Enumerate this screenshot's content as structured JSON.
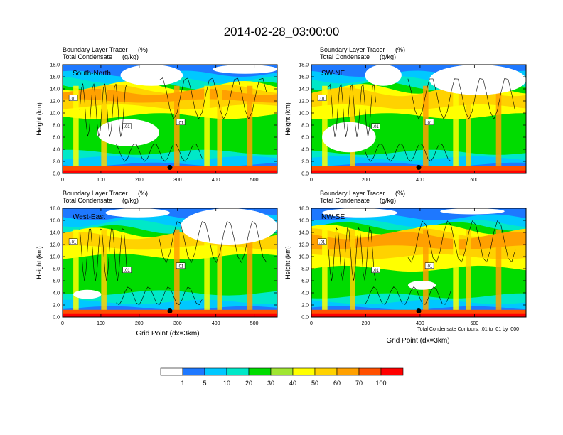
{
  "title": "2014-02-28_03:00:00",
  "panel_header": {
    "line1_label": "Boundary Layer Tracer",
    "line1_unit": "(%)",
    "line2_label": "Total Condensate",
    "line2_unit": "(g/kg)"
  },
  "ylabel": "Height (km)",
  "xlabel": "Grid Point (dx=3km)",
  "contour_note": "Total Condensate Contours: .01 to .01 by .000",
  "contour_label": ".01",
  "colors": {
    "levels": [
      "#ffffff",
      "#1e78ff",
      "#00c8ff",
      "#00e8c8",
      "#00dc00",
      "#a0e632",
      "#ffff00",
      "#ffd200",
      "#ffa000",
      "#ff5000",
      "#ff0000"
    ],
    "marker": "#000000"
  },
  "chart_data": [
    {
      "type": "heatmap",
      "name": "South-North",
      "label": "South-North",
      "xlim": [
        0,
        560
      ],
      "ylim": [
        0,
        18
      ],
      "xticks": [
        "0",
        "100",
        "200",
        "300",
        "400",
        "500"
      ],
      "yticks": [
        "0.0",
        "2.0",
        "4.0",
        "6.0",
        "8.0",
        "10.0",
        "12.0",
        "14.0",
        "16.0",
        "18.0"
      ],
      "marker": {
        "x": 280,
        "y": 1.0
      }
    },
    {
      "type": "heatmap",
      "name": "SW-NE",
      "label": "SW-NE",
      "xlim": [
        0,
        790
      ],
      "ylim": [
        0,
        18
      ],
      "xticks": [
        "0",
        "200",
        "400",
        "600"
      ],
      "yticks": [
        "0.0",
        "2.0",
        "4.0",
        "6.0",
        "8.0",
        "10.0",
        "12.0",
        "14.0",
        "16.0",
        "18.0"
      ],
      "marker": {
        "x": 395,
        "y": 1.0
      }
    },
    {
      "type": "heatmap",
      "name": "West-East",
      "label": "West-East",
      "xlim": [
        0,
        560
      ],
      "ylim": [
        0,
        18
      ],
      "xticks": [
        "0",
        "100",
        "200",
        "300",
        "400",
        "500"
      ],
      "yticks": [
        "0.0",
        "2.0",
        "4.0",
        "6.0",
        "8.0",
        "10.0",
        "12.0",
        "14.0",
        "16.0",
        "18.0"
      ],
      "marker": {
        "x": 280,
        "y": 1.0
      }
    },
    {
      "type": "heatmap",
      "name": "NW-SE",
      "label": "NW-SE",
      "xlim": [
        0,
        790
      ],
      "ylim": [
        0,
        18
      ],
      "xticks": [
        "0",
        "200",
        "400",
        "600"
      ],
      "yticks": [
        "0.0",
        "2.0",
        "4.0",
        "6.0",
        "8.0",
        "10.0",
        "12.0",
        "14.0",
        "16.0",
        "18.0"
      ],
      "marker": {
        "x": 395,
        "y": 1.0
      }
    }
  ],
  "colorbar": {
    "labels": [
      "1",
      "5",
      "10",
      "20",
      "30",
      "40",
      "50",
      "60",
      "70",
      "100"
    ]
  }
}
